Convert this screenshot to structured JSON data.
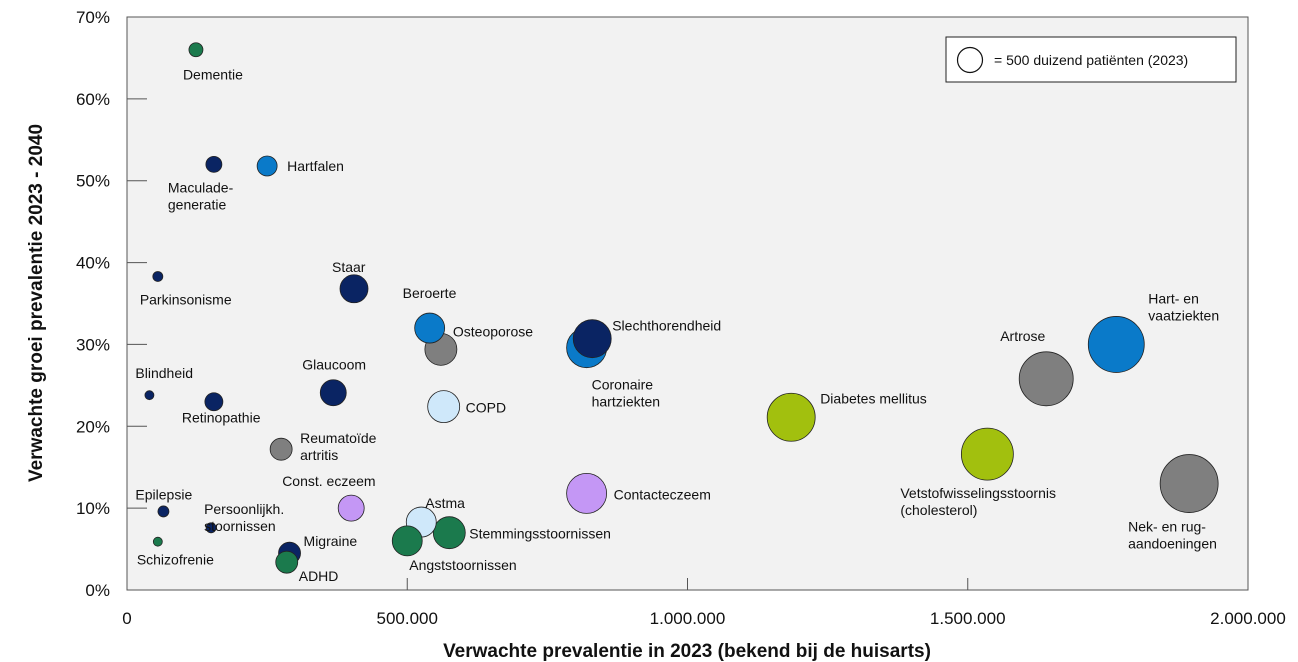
{
  "chart_data": {
    "type": "scatter",
    "xlabel": "Verwachte prevalentie in 2023 (bekend bij de huisarts)",
    "ylabel": "Verwachte groei prevalentie 2023 - 2040",
    "xlim": [
      0,
      2000000
    ],
    "ylim": [
      0,
      70
    ],
    "x_ticks": [
      "0",
      "500.000",
      "1.000.000",
      "1.500.000",
      "2.000.000"
    ],
    "y_ticks": [
      "0%",
      "10%",
      "20%",
      "30%",
      "40%",
      "50%",
      "60%",
      "70%"
    ],
    "grid": false,
    "legend": {
      "text": "= 500 duizend patiënten (2023)",
      "reference_value": 500000,
      "position": "top-right"
    },
    "colors": {
      "navy": "#0a2463",
      "blue": "#0a7ac9",
      "lightblue": "#cfe8fa",
      "green": "#1b7a4d",
      "gray": "#7f7f7f",
      "lime": "#a2c00e",
      "lilac": "#c497f5"
    },
    "points": [
      {
        "name": "Dementie",
        "label": "Dementie",
        "x": 123000,
        "y": 66,
        "color": "green"
      },
      {
        "name": "Maculadegeneratie",
        "label": "Maculade-\ngeneratie",
        "x": 155000,
        "y": 52,
        "color": "navy"
      },
      {
        "name": "Hartfalen",
        "label": "Hartfalen",
        "x": 250000,
        "y": 51.8,
        "color": "blue"
      },
      {
        "name": "Parkinsonisme",
        "label": "Parkinsonisme",
        "x": 55000,
        "y": 38.3,
        "color": "navy"
      },
      {
        "name": "Staar",
        "label": "Staar",
        "x": 405000,
        "y": 36.8,
        "color": "navy"
      },
      {
        "name": "Beroerte",
        "label": "Beroerte",
        "x": 540000,
        "y": 32,
        "color": "blue"
      },
      {
        "name": "Osteoporose",
        "label": "Osteoporose",
        "x": 560000,
        "y": 29.4,
        "color": "gray"
      },
      {
        "name": "Slechthorendheid",
        "label": "Slechthorendheid",
        "x": 830000,
        "y": 30.7,
        "color": "navy"
      },
      {
        "name": "Coronaire hartziekten",
        "label": "Coronaire\nhartziekten",
        "x": 820000,
        "y": 29.6,
        "color": "blue"
      },
      {
        "name": "Hart- en vaatziekten",
        "label": "Hart- en\nvaatziekten",
        "x": 1765000,
        "y": 30,
        "color": "blue"
      },
      {
        "name": "Artrose",
        "label": "Artrose",
        "x": 1640000,
        "y": 25.8,
        "color": "gray"
      },
      {
        "name": "Glaucoom",
        "label": "Glaucoom",
        "x": 368000,
        "y": 24.1,
        "color": "navy"
      },
      {
        "name": "Blindheid",
        "label": "Blindheid",
        "x": 40000,
        "y": 23.8,
        "color": "navy"
      },
      {
        "name": "Retinopathie",
        "label": "Retinopathie",
        "x": 155000,
        "y": 23,
        "color": "navy"
      },
      {
        "name": "COPD",
        "label": "COPD",
        "x": 565000,
        "y": 22.4,
        "color": "lightblue"
      },
      {
        "name": "Diabetes mellitus",
        "label": "Diabetes mellitus",
        "x": 1185000,
        "y": 21.1,
        "color": "lime"
      },
      {
        "name": "Reumatoïde artritis",
        "label": "Reumatoïde\nartritis",
        "x": 275000,
        "y": 17.2,
        "color": "gray"
      },
      {
        "name": "Vetstofwisselingsstoornis (cholesterol)",
        "label": "Vetstofwisselingsstoornis\n(cholesterol)",
        "x": 1535000,
        "y": 16.6,
        "color": "lime"
      },
      {
        "name": "Nek- en rugaandoeningen",
        "label": "Nek- en rug-\naandoeningen",
        "x": 1895000,
        "y": 13,
        "color": "gray"
      },
      {
        "name": "Contacteczeem",
        "label": "Contacteczeem",
        "x": 820000,
        "y": 11.8,
        "color": "lilac"
      },
      {
        "name": "Const. eczeem",
        "label": "Const. eczeem",
        "x": 400000,
        "y": 10,
        "color": "lilac"
      },
      {
        "name": "Epilepsie",
        "label": "Epilepsie",
        "x": 65000,
        "y": 9.6,
        "color": "navy"
      },
      {
        "name": "Astma",
        "label": "Astma",
        "x": 525000,
        "y": 8.3,
        "color": "lightblue"
      },
      {
        "name": "Persoonlijkheidsstoornissen",
        "label": "Persoonlijkh.\nstoornissen",
        "x": 150000,
        "y": 7.6,
        "color": "navy"
      },
      {
        "name": "Stemmingsstoornissen",
        "label": "Stemmingsstoornissen",
        "x": 575000,
        "y": 7,
        "color": "green"
      },
      {
        "name": "Angststoornissen",
        "label": "Angststoornissen",
        "x": 500000,
        "y": 6,
        "color": "green"
      },
      {
        "name": "Schizofrenie",
        "label": "Schizofrenie",
        "x": 55000,
        "y": 5.9,
        "color": "green"
      },
      {
        "name": "Migraine",
        "label": "Migraine",
        "x": 290000,
        "y": 4.5,
        "color": "navy"
      },
      {
        "name": "ADHD",
        "label": "ADHD",
        "x": 285000,
        "y": 3.4,
        "color": "green"
      }
    ]
  }
}
